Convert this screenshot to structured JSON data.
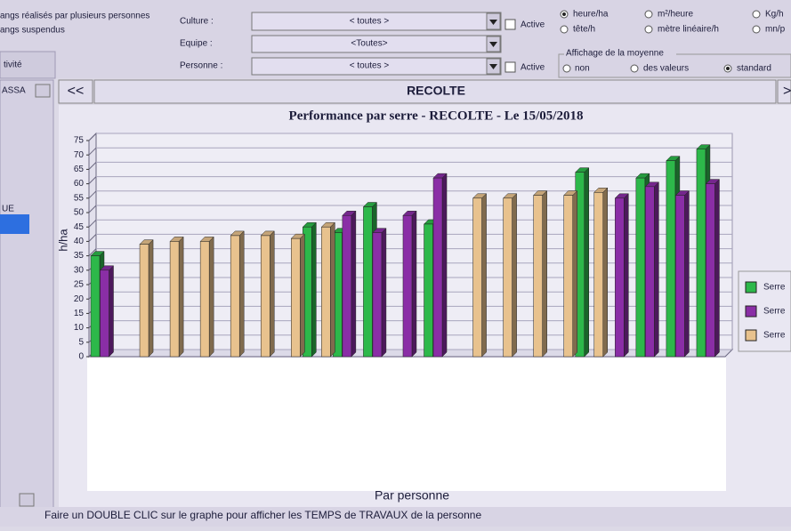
{
  "ui": {
    "left_panel": {
      "option_1": "angs réalisés par plusieurs personnes",
      "option_2": "angs suspendus",
      "tab": "tivité",
      "list_header": "ASSA",
      "list_item": "UE"
    },
    "filters": [
      {
        "label": "Culture :",
        "value": "< toutes >",
        "checkbox": "Active"
      },
      {
        "label": "Equipe :",
        "value": "<Toutes>"
      },
      {
        "label": "Personne :",
        "value": "< toutes >",
        "checkbox": "Active"
      }
    ],
    "units": [
      "heure/ha",
      "m²/heure",
      "Kg/h",
      "tête/h",
      "mètre linéaire/h",
      "mn/p"
    ],
    "average": {
      "title": "Affichage de la moyenne",
      "options": [
        "non",
        "des valeurs",
        "standard"
      ]
    },
    "nav": {
      "prev": "<<",
      "current": "RECOLTE",
      "next": ">"
    },
    "footer": {
      "caption": "Par personne",
      "hint": "Faire un DOUBLE CLIC sur le graphe pour afficher les TEMPS de TRAVAUX de la personne"
    }
  },
  "chart_data": {
    "type": "bar3d",
    "title": "Performance par serre - RECOLTE - Le 15/05/2018",
    "y_label": "h/ha",
    "categories": [
      null,
      null,
      null,
      null,
      null,
      null,
      null,
      null,
      null,
      null,
      null,
      null,
      null,
      null,
      null,
      null,
      null,
      null,
      null,
      null,
      null
    ],
    "series": [
      {
        "name": "Serre",
        "color": "#2db84a",
        "values": [
          35,
          null,
          null,
          null,
          null,
          null,
          null,
          45,
          43,
          52,
          null,
          46,
          null,
          null,
          null,
          null,
          64,
          null,
          62,
          68,
          72
        ]
      },
      {
        "name": "Serre",
        "color": "#8a2ea6",
        "values": [
          30,
          null,
          null,
          null,
          null,
          null,
          null,
          null,
          49,
          43,
          49,
          62,
          null,
          null,
          null,
          null,
          null,
          55,
          59,
          56,
          60
        ]
      },
      {
        "name": "Serre",
        "color": "#e8c28e",
        "values": [
          null,
          39,
          40,
          40,
          42,
          42,
          41,
          45,
          null,
          null,
          null,
          null,
          55,
          55,
          56,
          56,
          57,
          null,
          null,
          null,
          null
        ]
      }
    ],
    "ylim": [
      0,
      75
    ],
    "yticks": [
      0,
      5,
      10,
      15,
      20,
      25,
      30,
      35,
      40,
      45,
      50,
      55,
      60,
      65,
      70,
      75
    ],
    "grid": true,
    "legend": "right"
  }
}
